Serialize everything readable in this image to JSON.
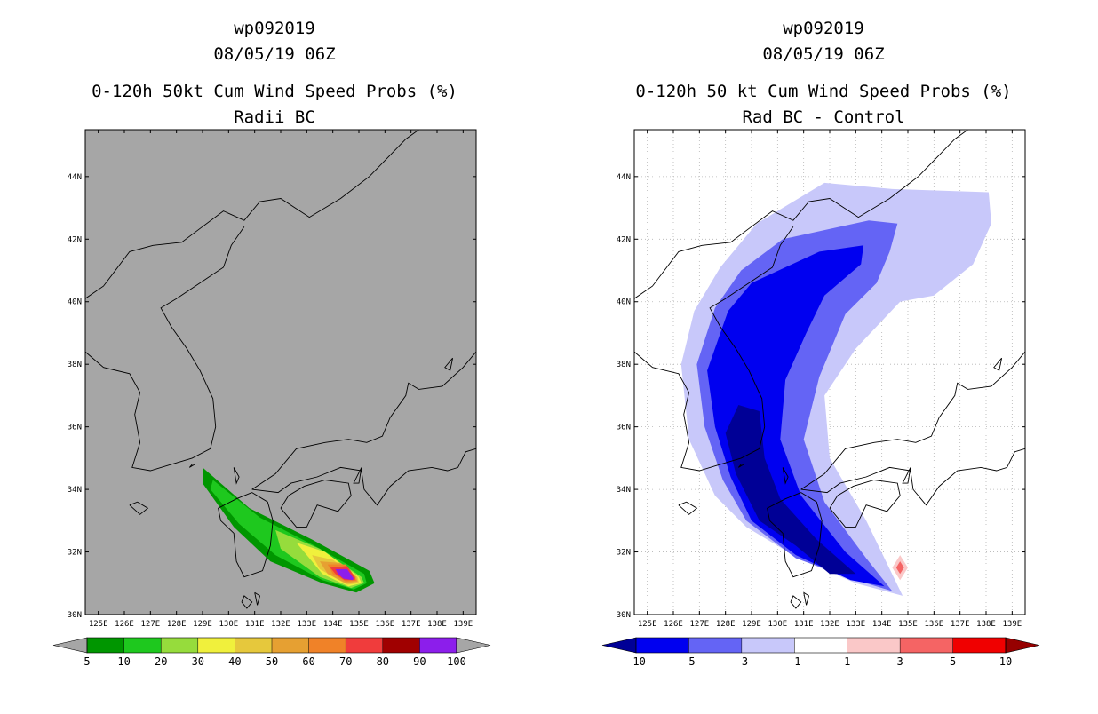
{
  "chart_data": [
    {
      "type": "heatmap",
      "storm_id": "wp092019",
      "date": "08/05/19 06Z",
      "title": "0-120h 50kt Cum Wind Speed Probs (%)",
      "subtitle": "Radii BC",
      "xlim": [
        124.5,
        139.5
      ],
      "ylim": [
        30,
        45.5
      ],
      "x_ticks": [
        "125E",
        "126E",
        "127E",
        "128E",
        "129E",
        "130E",
        "131E",
        "132E",
        "133E",
        "134E",
        "135E",
        "136E",
        "137E",
        "138E",
        "139E"
      ],
      "y_ticks": [
        "30N",
        "32N",
        "34N",
        "36N",
        "38N",
        "40N",
        "42N",
        "44N"
      ],
      "background": "#a6a6a6",
      "colorbar": {
        "labels": [
          "5",
          "10",
          "20",
          "30",
          "40",
          "50",
          "60",
          "70",
          "80",
          "90",
          "100"
        ],
        "colors": [
          "#009600",
          "#1ec81e",
          "#96dc3c",
          "#f0f03c",
          "#e6c83c",
          "#e6a032",
          "#f08228",
          "#f03c3c",
          "#a00000",
          "#8c1eeb"
        ],
        "low_color": "#a6a6a6",
        "high_color": "#a6a6a6"
      },
      "contour_levels": [
        {
          "color": "#009600",
          "points": [
            [
              129.0,
              34.7
            ],
            [
              130.8,
              33.4
            ],
            [
              133.2,
              32.4
            ],
            [
              135.4,
              31.4
            ],
            [
              135.6,
              31.0
            ],
            [
              134.9,
              30.7
            ],
            [
              133.6,
              31.0
            ],
            [
              131.6,
              31.7
            ],
            [
              130.2,
              32.8
            ],
            [
              129.0,
              34.2
            ]
          ]
        },
        {
          "color": "#1ec81e",
          "points": [
            [
              129.4,
              34.3
            ],
            [
              131.2,
              33.1
            ],
            [
              133.3,
              32.2
            ],
            [
              135.2,
              31.3
            ],
            [
              135.3,
              31.0
            ],
            [
              134.8,
              30.8
            ],
            [
              133.6,
              31.1
            ],
            [
              131.8,
              31.9
            ],
            [
              130.4,
              32.9
            ],
            [
              129.3,
              34.0
            ]
          ]
        },
        {
          "color": "#96dc3c",
          "points": [
            [
              131.8,
              32.7
            ],
            [
              133.5,
              32.1
            ],
            [
              135.1,
              31.2
            ],
            [
              135.2,
              31.0
            ],
            [
              134.7,
              30.85
            ],
            [
              133.5,
              31.2
            ],
            [
              132.0,
              32.1
            ]
          ]
        },
        {
          "color": "#f0f03c",
          "points": [
            [
              132.6,
              32.3
            ],
            [
              133.7,
              32.0
            ],
            [
              135.0,
              31.2
            ],
            [
              135.1,
              31.0
            ],
            [
              134.6,
              30.9
            ],
            [
              133.6,
              31.3
            ]
          ]
        },
        {
          "color": "#e6c83c",
          "points": [
            [
              133.2,
              31.9
            ],
            [
              134.0,
              31.75
            ],
            [
              134.95,
              31.2
            ],
            [
              135.0,
              31.0
            ],
            [
              134.55,
              30.95
            ],
            [
              133.5,
              31.45
            ]
          ]
        },
        {
          "color": "#e6a032",
          "points": [
            [
              133.5,
              31.7
            ],
            [
              134.3,
              31.65
            ],
            [
              134.9,
              31.2
            ],
            [
              134.95,
              31.05
            ],
            [
              134.5,
              31.0
            ],
            [
              133.8,
              31.3
            ]
          ]
        },
        {
          "color": "#f08228",
          "points": [
            [
              133.8,
              31.6
            ],
            [
              134.5,
              31.6
            ],
            [
              134.85,
              31.2
            ],
            [
              134.9,
              31.08
            ],
            [
              134.5,
              31.05
            ],
            [
              134.0,
              31.3
            ]
          ]
        },
        {
          "color": "#f03c3c",
          "points": [
            [
              133.9,
              31.5
            ],
            [
              134.55,
              31.55
            ],
            [
              134.85,
              31.2
            ],
            [
              134.85,
              31.1
            ],
            [
              134.45,
              31.1
            ],
            [
              134.1,
              31.3
            ]
          ]
        },
        {
          "color": "#8c1eeb",
          "points": [
            [
              134.1,
              31.45
            ],
            [
              134.55,
              31.45
            ],
            [
              134.8,
              31.15
            ],
            [
              134.75,
              31.1
            ],
            [
              134.4,
              31.15
            ],
            [
              134.2,
              31.3
            ]
          ]
        }
      ]
    },
    {
      "type": "heatmap",
      "storm_id": "wp092019",
      "date": "08/05/19 06Z",
      "title": "0-120h 50 kt Cum Wind Speed Probs (%)",
      "subtitle": "Rad BC - Control",
      "xlim": [
        124.5,
        139.5
      ],
      "ylim": [
        30,
        45.5
      ],
      "x_ticks": [
        "125E",
        "126E",
        "127E",
        "128E",
        "129E",
        "130E",
        "131E",
        "132E",
        "133E",
        "134E",
        "135E",
        "136E",
        "137E",
        "138E",
        "139E"
      ],
      "y_ticks": [
        "30N",
        "32N",
        "34N",
        "36N",
        "38N",
        "40N",
        "42N",
        "44N"
      ],
      "background": "#ffffff",
      "colorbar": {
        "labels": [
          "-10",
          "-5",
          "-3",
          "-1",
          "1",
          "3",
          "5",
          "10"
        ],
        "colors": [
          "#0000f0",
          "#6464f5",
          "#c8c8fa",
          "#ffffff",
          "#fac8c8",
          "#f56464",
          "#f00000"
        ],
        "low_color": "#000096",
        "high_color": "#960000"
      },
      "contour_levels": [
        {
          "color": "#c8c8fa",
          "points": [
            [
              126.3,
              38.0
            ],
            [
              126.8,
              39.7
            ],
            [
              127.8,
              41.1
            ],
            [
              129.2,
              42.5
            ],
            [
              131.8,
              43.8
            ],
            [
              134.4,
              43.6
            ],
            [
              138.1,
              43.5
            ],
            [
              138.2,
              42.5
            ],
            [
              137.5,
              41.2
            ],
            [
              136.0,
              40.2
            ],
            [
              134.7,
              40.0
            ],
            [
              133.0,
              38.5
            ],
            [
              131.8,
              37.0
            ],
            [
              132.0,
              35.0
            ],
            [
              133.4,
              33.0
            ],
            [
              134.8,
              30.6
            ],
            [
              133.0,
              31.0
            ],
            [
              130.8,
              31.8
            ],
            [
              128.8,
              32.8
            ],
            [
              127.6,
              33.8
            ],
            [
              126.6,
              35.6
            ]
          ]
        },
        {
          "color": "#6464f5",
          "points": [
            [
              126.9,
              38.0
            ],
            [
              127.6,
              39.8
            ],
            [
              128.6,
              41.0
            ],
            [
              130.2,
              42.0
            ],
            [
              133.5,
              42.6
            ],
            [
              134.6,
              42.5
            ],
            [
              134.3,
              41.6
            ],
            [
              133.8,
              40.6
            ],
            [
              132.6,
              39.6
            ],
            [
              131.6,
              37.6
            ],
            [
              131.0,
              35.6
            ],
            [
              131.8,
              33.6
            ],
            [
              133.4,
              31.8
            ],
            [
              134.4,
              30.75
            ],
            [
              133.0,
              31.1
            ],
            [
              130.7,
              31.8
            ],
            [
              128.8,
              33.0
            ],
            [
              127.9,
              34.3
            ],
            [
              127.2,
              36.0
            ]
          ]
        },
        {
          "color": "#0000f0",
          "points": [
            [
              127.3,
              37.8
            ],
            [
              128.1,
              39.7
            ],
            [
              129.0,
              40.6
            ],
            [
              131.6,
              41.6
            ],
            [
              133.3,
              41.8
            ],
            [
              133.2,
              41.2
            ],
            [
              131.8,
              40.2
            ],
            [
              131.1,
              39.0
            ],
            [
              130.3,
              37.5
            ],
            [
              130.1,
              35.6
            ],
            [
              130.9,
              33.8
            ],
            [
              132.6,
              32.0
            ],
            [
              134.1,
              30.9
            ],
            [
              132.8,
              31.1
            ],
            [
              130.7,
              31.9
            ],
            [
              129.0,
              33.0
            ],
            [
              128.2,
              34.4
            ],
            [
              127.6,
              36.0
            ]
          ]
        },
        {
          "color": "#000096",
          "points": [
            [
              128.0,
              35.8
            ],
            [
              128.5,
              36.7
            ],
            [
              129.3,
              36.5
            ],
            [
              129.5,
              35.0
            ],
            [
              130.1,
              33.7
            ],
            [
              131.5,
              32.4
            ],
            [
              133.0,
              31.3
            ],
            [
              132.0,
              31.3
            ],
            [
              130.7,
              32.2
            ],
            [
              129.3,
              33.0
            ],
            [
              128.4,
              34.5
            ]
          ]
        },
        {
          "color": "#fac8c8",
          "points": [
            [
              134.4,
              31.5
            ],
            [
              134.7,
              31.9
            ],
            [
              135.0,
              31.5
            ],
            [
              134.7,
              31.1
            ]
          ]
        },
        {
          "color": "#f56464",
          "points": [
            [
              134.55,
              31.5
            ],
            [
              134.7,
              31.7
            ],
            [
              134.85,
              31.5
            ],
            [
              134.7,
              31.3
            ]
          ]
        }
      ]
    }
  ]
}
